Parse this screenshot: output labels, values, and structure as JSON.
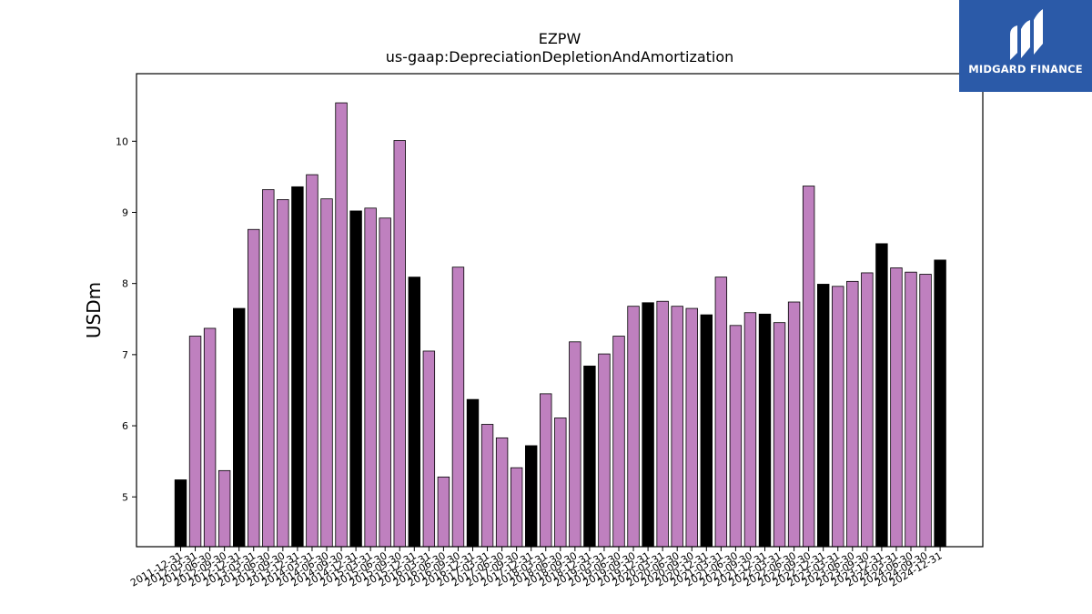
{
  "chart_data": {
    "type": "bar",
    "title": "EZPW",
    "subtitle": "us-gaap:DepreciationDepletionAndAmortization",
    "xlabel": "",
    "ylabel": "USDm",
    "ylim": [
      4.3,
      10.95
    ],
    "yticks": [
      5,
      6,
      7,
      8,
      9,
      10
    ],
    "grid": false,
    "colors": {
      "fiscal_year_end": "#000000",
      "quarter": "#bf80bf"
    },
    "categories": [
      "2011-12-31",
      "2012-03-31",
      "2012-06-30",
      "2012-09-30",
      "2012-12-31",
      "2013-03-31",
      "2013-06-30",
      "2013-09-30",
      "2013-12-31",
      "2014-03-31",
      "2014-06-30",
      "2014-09-30",
      "2014-12-31",
      "2015-03-31",
      "2015-06-30",
      "2015-09-30",
      "2015-12-31",
      "2016-03-31",
      "2016-06-30",
      "2016-09-30",
      "2016-12-31",
      "2017-03-31",
      "2017-06-30",
      "2017-09-30",
      "2017-12-31",
      "2018-03-31",
      "2018-06-30",
      "2018-09-30",
      "2018-12-31",
      "2019-03-31",
      "2019-06-30",
      "2019-09-30",
      "2019-12-31",
      "2020-03-31",
      "2020-06-30",
      "2020-09-30",
      "2020-12-31",
      "2021-03-31",
      "2021-06-30",
      "2021-09-30",
      "2021-12-31",
      "2022-03-31",
      "2022-06-30",
      "2022-09-30",
      "2022-12-31",
      "2023-03-31",
      "2023-06-30",
      "2023-09-30",
      "2023-12-31",
      "2024-03-31",
      "2024-06-30",
      "2024-09-30",
      "2024-12-31"
    ],
    "values": [
      5.24,
      7.26,
      7.37,
      5.37,
      7.65,
      8.76,
      9.32,
      9.18,
      9.36,
      9.53,
      9.19,
      10.54,
      9.02,
      9.06,
      8.92,
      10.01,
      8.09,
      7.05,
      5.28,
      8.23,
      6.37,
      6.02,
      5.83,
      5.41,
      5.72,
      6.45,
      6.11,
      7.18,
      6.84,
      7.01,
      7.26,
      7.68,
      7.73,
      7.75,
      7.68,
      7.65,
      7.56,
      8.09,
      7.41,
      7.59,
      7.57,
      7.45,
      7.74,
      9.37,
      7.99,
      7.96,
      8.03,
      8.15,
      8.56,
      8.22,
      8.16,
      8.13,
      8.33
    ],
    "highlight": [
      true,
      false,
      false,
      false,
      true,
      false,
      false,
      false,
      true,
      false,
      false,
      false,
      true,
      false,
      false,
      false,
      true,
      false,
      false,
      false,
      true,
      false,
      false,
      false,
      true,
      false,
      false,
      false,
      true,
      false,
      false,
      false,
      true,
      false,
      false,
      false,
      true,
      false,
      false,
      false,
      true,
      false,
      false,
      false,
      true,
      false,
      false,
      false,
      true,
      false,
      false,
      false,
      true
    ]
  },
  "branding": {
    "name": "MIDGARD FINANCE",
    "icon": "midgard-logo-icon",
    "background": "#2b5aa8"
  }
}
